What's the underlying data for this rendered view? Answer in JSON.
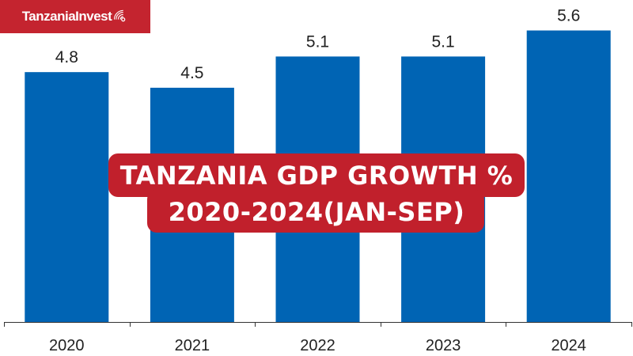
{
  "brand": {
    "name": "TanzaniaInvest",
    "icon": "wifi-signal-icon"
  },
  "colors": {
    "bar": "#0064b4",
    "title_bg": "#c1202c",
    "brand_bg": "#c4242f",
    "axis": "#333333",
    "text": "#222222"
  },
  "chart_data": {
    "type": "bar",
    "title": "TANZANIA GDP GROWTH %",
    "subtitle": "2020-2024(JAN-SEP)",
    "categories": [
      "2020",
      "2021",
      "2022",
      "2023",
      "2024"
    ],
    "values": [
      4.8,
      4.5,
      5.1,
      5.1,
      5.6
    ],
    "value_labels": [
      "4.8",
      "4.5",
      "5.1",
      "5.1",
      "5.6"
    ],
    "xlabel": "",
    "ylabel": "",
    "ylim": [
      0,
      6
    ],
    "grid": false,
    "legend": "none"
  }
}
